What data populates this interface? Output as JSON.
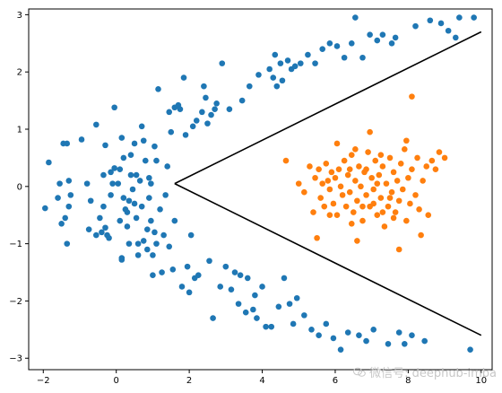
{
  "chart_data": {
    "type": "scatter",
    "xlim": [
      -2.4,
      10.3
    ],
    "ylim": [
      -3.2,
      3.1
    ],
    "x_ticks": [
      -2,
      0,
      2,
      4,
      6,
      8,
      10
    ],
    "y_ticks": [
      -3,
      -2,
      -1,
      0,
      1,
      2,
      3
    ],
    "grid": false,
    "series": [
      {
        "color": "#1f77b4",
        "points": [
          [
            -1.95,
            -0.38
          ],
          [
            -1.85,
            0.42
          ],
          [
            -1.6,
            -0.2
          ],
          [
            -1.55,
            0.05
          ],
          [
            -1.5,
            -0.65
          ],
          [
            -1.45,
            0.75
          ],
          [
            -1.35,
            0.75
          ],
          [
            -1.4,
            -0.55
          ],
          [
            -1.35,
            -1.0
          ],
          [
            -1.3,
            -0.35
          ],
          [
            -1.3,
            0.1
          ],
          [
            -1.25,
            -0.15
          ],
          [
            -0.95,
            0.82
          ],
          [
            -0.8,
            0.05
          ],
          [
            -0.75,
            -0.75
          ],
          [
            -0.7,
            -0.25
          ],
          [
            -0.55,
            1.08
          ],
          [
            -0.55,
            -0.85
          ],
          [
            -0.45,
            -0.55
          ],
          [
            -0.4,
            -0.8
          ],
          [
            -0.3,
            0.72
          ],
          [
            -0.35,
            0.2
          ],
          [
            -0.35,
            -0.35
          ],
          [
            -0.3,
            -0.72
          ],
          [
            -0.25,
            -0.85
          ],
          [
            -0.2,
            -0.9
          ],
          [
            -0.15,
            0.25
          ],
          [
            -0.15,
            -0.15
          ],
          [
            -0.1,
            0.05
          ],
          [
            -0.05,
            1.38
          ],
          [
            -0.05,
            0.32
          ],
          [
            0.05,
            0.05
          ],
          [
            0.1,
            0.3
          ],
          [
            0.1,
            -0.6
          ],
          [
            0.15,
            0.85
          ],
          [
            0.15,
            -1.28
          ],
          [
            0.15,
            -1.25
          ],
          [
            0.2,
            0.5
          ],
          [
            0.2,
            -0.2
          ],
          [
            0.25,
            -0.4
          ],
          [
            0.3,
            -0.45
          ],
          [
            0.3,
            -0.7
          ],
          [
            0.35,
            -1.0
          ],
          [
            0.35,
            -0.25
          ],
          [
            0.4,
            0.55
          ],
          [
            0.4,
            0.2
          ],
          [
            0.45,
            -0.05
          ],
          [
            0.5,
            0.75
          ],
          [
            0.5,
            -0.3
          ],
          [
            0.55,
            0.2
          ],
          [
            0.55,
            -0.55
          ],
          [
            0.6,
            -1.0
          ],
          [
            0.6,
            -1.2
          ],
          [
            0.65,
            0.1
          ],
          [
            0.7,
            1.05
          ],
          [
            0.7,
            -0.35
          ],
          [
            0.75,
            0.8
          ],
          [
            0.75,
            -0.95
          ],
          [
            0.8,
            0.45
          ],
          [
            0.85,
            -0.75
          ],
          [
            0.85,
            -1.1
          ],
          [
            0.9,
            0.15
          ],
          [
            0.9,
            -0.2
          ],
          [
            0.95,
            0.05
          ],
          [
            0.95,
            -0.6
          ],
          [
            1.0,
            -1.2
          ],
          [
            1.0,
            -1.55
          ],
          [
            1.05,
            0.7
          ],
          [
            1.05,
            -0.8
          ],
          [
            1.1,
            0.45
          ],
          [
            1.1,
            -1.0
          ],
          [
            1.15,
            1.7
          ],
          [
            1.2,
            -0.4
          ],
          [
            1.25,
            -1.5
          ],
          [
            1.3,
            -0.85
          ],
          [
            1.35,
            -0.15
          ],
          [
            1.4,
            0.35
          ],
          [
            1.45,
            -1.05
          ],
          [
            1.45,
            1.3
          ],
          [
            1.5,
            0.95
          ],
          [
            1.55,
            -1.45
          ],
          [
            1.6,
            1.38
          ],
          [
            1.6,
            -0.6
          ],
          [
            1.7,
            1.42
          ],
          [
            1.75,
            1.35
          ],
          [
            1.8,
            -1.75
          ],
          [
            1.85,
            1.9
          ],
          [
            1.9,
            0.9
          ],
          [
            1.95,
            -1.4
          ],
          [
            2.0,
            -1.85
          ],
          [
            2.05,
            -0.85
          ],
          [
            2.1,
            1.05
          ],
          [
            2.15,
            -1.6
          ],
          [
            2.2,
            1.15
          ],
          [
            2.25,
            -1.55
          ],
          [
            2.35,
            1.3
          ],
          [
            2.4,
            1.75
          ],
          [
            2.45,
            1.55
          ],
          [
            2.5,
            1.1
          ],
          [
            2.55,
            -1.3
          ],
          [
            2.6,
            1.25
          ],
          [
            2.65,
            -2.3
          ],
          [
            2.7,
            1.35
          ],
          [
            2.75,
            1.45
          ],
          [
            2.85,
            -1.75
          ],
          [
            2.9,
            2.15
          ],
          [
            3.0,
            -1.4
          ],
          [
            3.1,
            1.35
          ],
          [
            3.15,
            -1.8
          ],
          [
            3.25,
            -1.5
          ],
          [
            3.35,
            -2.05
          ],
          [
            3.4,
            -1.55
          ],
          [
            3.45,
            1.5
          ],
          [
            3.55,
            -2.2
          ],
          [
            3.6,
            -1.6
          ],
          [
            3.65,
            1.75
          ],
          [
            3.75,
            -2.15
          ],
          [
            3.8,
            -1.9
          ],
          [
            3.85,
            -2.3
          ],
          [
            3.9,
            1.95
          ],
          [
            4.0,
            -1.75
          ],
          [
            4.1,
            -2.45
          ],
          [
            4.2,
            2.05
          ],
          [
            4.25,
            -2.45
          ],
          [
            4.3,
            1.9
          ],
          [
            4.35,
            2.3
          ],
          [
            4.4,
            1.75
          ],
          [
            4.45,
            -2.1
          ],
          [
            4.5,
            2.15
          ],
          [
            4.55,
            1.85
          ],
          [
            4.6,
            -1.6
          ],
          [
            4.7,
            2.2
          ],
          [
            4.75,
            -2.05
          ],
          [
            4.8,
            2.05
          ],
          [
            4.85,
            -2.4
          ],
          [
            4.9,
            2.1
          ],
          [
            4.95,
            -1.95
          ],
          [
            5.05,
            2.15
          ],
          [
            5.15,
            -2.25
          ],
          [
            5.25,
            2.3
          ],
          [
            5.35,
            -2.5
          ],
          [
            5.45,
            2.15
          ],
          [
            5.55,
            -2.6
          ],
          [
            5.65,
            2.4
          ],
          [
            5.75,
            -2.4
          ],
          [
            5.85,
            2.5
          ],
          [
            5.95,
            -2.65
          ],
          [
            6.05,
            2.45
          ],
          [
            6.15,
            -2.85
          ],
          [
            6.25,
            2.25
          ],
          [
            6.35,
            -2.55
          ],
          [
            6.45,
            2.5
          ],
          [
            6.55,
            2.95
          ],
          [
            6.65,
            -2.6
          ],
          [
            6.75,
            2.25
          ],
          [
            6.85,
            -2.7
          ],
          [
            6.95,
            2.65
          ],
          [
            7.05,
            -2.5
          ],
          [
            7.15,
            2.55
          ],
          [
            7.3,
            2.65
          ],
          [
            7.45,
            -2.75
          ],
          [
            7.55,
            2.5
          ],
          [
            7.65,
            2.6
          ],
          [
            7.75,
            -2.55
          ],
          [
            7.9,
            -2.75
          ],
          [
            8.1,
            -2.6
          ],
          [
            8.2,
            2.8
          ],
          [
            8.45,
            -2.7
          ],
          [
            8.6,
            2.9
          ],
          [
            8.9,
            2.85
          ],
          [
            9.1,
            2.72
          ],
          [
            9.3,
            2.6
          ],
          [
            9.4,
            2.95
          ],
          [
            9.7,
            -2.85
          ],
          [
            9.8,
            2.95
          ]
        ]
      },
      {
        "color": "#ff7f0e",
        "points": [
          [
            4.65,
            0.45
          ],
          [
            5.0,
            0.05
          ],
          [
            5.15,
            -0.1
          ],
          [
            5.3,
            0.35
          ],
          [
            5.4,
            -0.45
          ],
          [
            5.45,
            0.15
          ],
          [
            5.5,
            -0.9
          ],
          [
            5.55,
            0.3
          ],
          [
            5.6,
            -0.2
          ],
          [
            5.65,
            0.05
          ],
          [
            5.7,
            -0.35
          ],
          [
            5.75,
            0.4
          ],
          [
            5.8,
            0.1
          ],
          [
            5.85,
            -0.05
          ],
          [
            5.9,
            0.25
          ],
          [
            5.95,
            -0.3
          ],
          [
            6.0,
            0.15
          ],
          [
            6.05,
            -0.5
          ],
          [
            6.1,
            0.3
          ],
          [
            6.15,
            0.0
          ],
          [
            6.2,
            -0.15
          ],
          [
            6.25,
            0.45
          ],
          [
            6.3,
            -0.35
          ],
          [
            6.35,
            0.2
          ],
          [
            6.4,
            -0.1
          ],
          [
            6.45,
            0.55
          ],
          [
            6.5,
            -0.45
          ],
          [
            6.55,
            0.1
          ],
          [
            6.6,
            -0.25
          ],
          [
            6.65,
            0.35
          ],
          [
            6.7,
            0.0
          ],
          [
            6.75,
            -0.6
          ],
          [
            6.8,
            0.25
          ],
          [
            6.85,
            -0.15
          ],
          [
            6.9,
            0.6
          ],
          [
            6.95,
            -0.35
          ],
          [
            7.0,
            0.15
          ],
          [
            7.05,
            -0.05
          ],
          [
            7.1,
            0.45
          ],
          [
            7.15,
            -0.5
          ],
          [
            7.2,
            0.2
          ],
          [
            7.25,
            -0.2
          ],
          [
            7.3,
            0.35
          ],
          [
            7.35,
            -0.7
          ],
          [
            7.4,
            0.05
          ],
          [
            7.45,
            -0.35
          ],
          [
            7.5,
            0.5
          ],
          [
            7.55,
            -0.1
          ],
          [
            7.6,
            0.25
          ],
          [
            7.65,
            -0.45
          ],
          [
            7.7,
            0.1
          ],
          [
            7.75,
            -0.25
          ],
          [
            7.8,
            0.4
          ],
          [
            7.85,
            -0.05
          ],
          [
            7.9,
            0.65
          ],
          [
            7.95,
            -0.6
          ],
          [
            8.0,
            0.15
          ],
          [
            8.05,
            -0.3
          ],
          [
            8.1,
            0.3
          ],
          [
            8.2,
            -0.15
          ],
          [
            8.25,
            0.5
          ],
          [
            8.3,
            -0.4
          ],
          [
            8.4,
            0.1
          ],
          [
            8.5,
            0.35
          ],
          [
            8.55,
            -0.5
          ],
          [
            8.65,
            0.45
          ],
          [
            8.75,
            0.3
          ],
          [
            8.85,
            0.6
          ],
          [
            9.0,
            0.5
          ],
          [
            6.6,
            -0.95
          ],
          [
            6.95,
            0.95
          ],
          [
            7.3,
            -0.45
          ],
          [
            7.95,
            0.8
          ],
          [
            8.1,
            1.57
          ],
          [
            8.35,
            -0.85
          ],
          [
            7.75,
            -1.1
          ],
          [
            6.05,
            0.75
          ],
          [
            6.45,
            -0.65
          ],
          [
            6.55,
            0.65
          ],
          [
            7.25,
            0.55
          ],
          [
            7.6,
            -0.55
          ],
          [
            6.85,
            0.3
          ],
          [
            7.15,
            0.05
          ],
          [
            6.4,
            0.3
          ],
          [
            6.75,
            -0.35
          ],
          [
            7.05,
            -0.3
          ],
          [
            7.5,
            -0.2
          ],
          [
            5.85,
            -0.5
          ]
        ]
      }
    ],
    "lines": [
      {
        "color": "#000000",
        "points": [
          [
            1.6,
            0.05
          ],
          [
            10.0,
            2.7
          ]
        ]
      },
      {
        "color": "#000000",
        "points": [
          [
            1.6,
            0.05
          ],
          [
            10.0,
            -2.6
          ]
        ]
      }
    ]
  },
  "watermark": {
    "text": "微信号: deephub-imba"
  }
}
